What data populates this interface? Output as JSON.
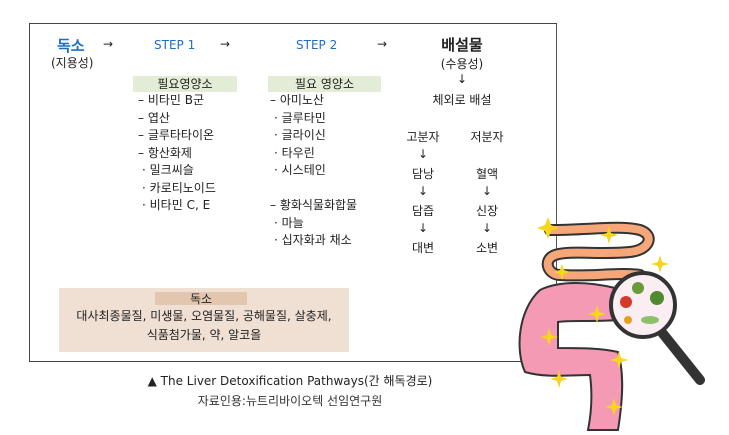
{
  "toxin": {
    "title": "독소",
    "subtitle": "(지용성)"
  },
  "arrow": "→",
  "down_arrow": "↓",
  "step1": {
    "title": "STEP 1",
    "header": "필요영양소",
    "items": [
      "– 비타민 B군",
      "– 엽산",
      "– 글루타타이온",
      "– 항산화제",
      "· 밀크씨슬",
      "· 카로티노이드",
      "· 비타민 C, E"
    ]
  },
  "step2": {
    "title": "STEP 2",
    "header": "필요 영양소",
    "items": [
      "– 아미노산",
      "· 글루타민",
      "· 글라이신",
      "· 타우린",
      "· 시스테인",
      "",
      "– 황화식물화합물",
      "· 마늘",
      "· 십자화과 채소"
    ]
  },
  "excretion": {
    "title": "배설물",
    "subtitle": "(수용성)",
    "out": "체외로 배설",
    "high": [
      "고분자",
      "담낭",
      "담즙",
      "대변"
    ],
    "low": [
      "저분자",
      "혈액",
      "신장",
      "소변"
    ]
  },
  "toxins_box": {
    "header": "독소",
    "line1": "대사최종물질, 미생물, 오염물질, 공해물질, 살충제,",
    "line2": "식품첨가물, 약, 알코올"
  },
  "caption": {
    "title": "▲ The Liver Detoxification Pathways(간 해독경로)",
    "source": "자료인용:뉴트리바이오텍 선임연구원"
  },
  "colors": {
    "accent": "#1f6fbf",
    "nutrient_header": "#e3ecd6",
    "toxin_box": "#f0e0d3",
    "intestine_large": "#f49ab4",
    "intestine_small": "#f5a77a"
  }
}
